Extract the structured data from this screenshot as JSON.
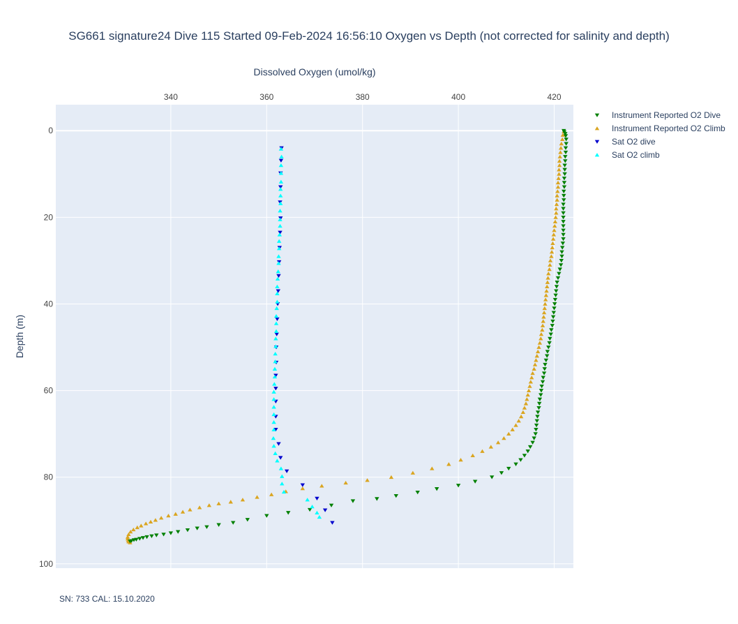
{
  "chart_data": {
    "type": "scatter",
    "title": "SG661 signature24 Dive 115 Started 09-Feb-2024 16:56:10  Oxygen vs Depth (not corrected for salinity and depth)",
    "xlabel": "Dissolved Oxygen (umol/kg)",
    "ylabel": "Depth (m)",
    "xlim": [
      316,
      424
    ],
    "ylim": [
      -6,
      101
    ],
    "y_reversed": true,
    "x_axis_position": "top",
    "x_ticks": [
      340,
      360,
      380,
      400,
      420
    ],
    "y_ticks": [
      0,
      20,
      40,
      60,
      80,
      100
    ],
    "grid": true,
    "legend_position": "top-right",
    "footnote": "SN: 733  CAL: 15.10.2020",
    "series": [
      {
        "name": "Instrument Reported O2 Dive",
        "color": "#008000",
        "marker": "triangle-down",
        "points": [
          [
            422.0,
            0.0
          ],
          [
            422.1,
            0.3
          ],
          [
            422.3,
            0.7
          ],
          [
            422.4,
            1.2
          ],
          [
            422.5,
            2.0
          ],
          [
            422.5,
            3.0
          ],
          [
            422.4,
            4.0
          ],
          [
            422.4,
            5.0
          ],
          [
            422.3,
            6.0
          ],
          [
            422.3,
            7.0
          ],
          [
            422.2,
            8.0
          ],
          [
            422.2,
            9.0
          ],
          [
            422.2,
            10.0
          ],
          [
            422.1,
            11.0
          ],
          [
            422.1,
            12.0
          ],
          [
            422.1,
            13.0
          ],
          [
            422.0,
            14.0
          ],
          [
            422.0,
            15.0
          ],
          [
            422.0,
            16.0
          ],
          [
            421.9,
            17.0
          ],
          [
            421.9,
            18.0
          ],
          [
            421.9,
            19.0
          ],
          [
            421.9,
            20.0
          ],
          [
            421.9,
            21.0
          ],
          [
            421.9,
            22.0
          ],
          [
            421.9,
            23.0
          ],
          [
            421.9,
            24.0
          ],
          [
            421.9,
            25.0
          ],
          [
            421.8,
            26.0
          ],
          [
            421.7,
            27.0
          ],
          [
            421.6,
            28.0
          ],
          [
            421.6,
            29.0
          ],
          [
            421.5,
            30.0
          ],
          [
            421.4,
            31.0
          ],
          [
            421.2,
            32.0
          ],
          [
            421.0,
            33.0
          ],
          [
            420.8,
            34.0
          ],
          [
            420.6,
            35.0
          ],
          [
            420.5,
            36.0
          ],
          [
            420.4,
            37.0
          ],
          [
            420.3,
            38.0
          ],
          [
            420.2,
            39.0
          ],
          [
            420.1,
            40.0
          ],
          [
            420.0,
            41.0
          ],
          [
            419.9,
            42.0
          ],
          [
            419.8,
            43.0
          ],
          [
            419.7,
            44.0
          ],
          [
            419.6,
            45.0
          ],
          [
            419.4,
            46.0
          ],
          [
            419.3,
            47.0
          ],
          [
            419.1,
            48.0
          ],
          [
            419.0,
            49.0
          ],
          [
            418.8,
            50.0
          ],
          [
            418.6,
            51.0
          ],
          [
            418.5,
            52.0
          ],
          [
            418.3,
            53.0
          ],
          [
            418.1,
            54.0
          ],
          [
            418.0,
            55.0
          ],
          [
            417.9,
            56.0
          ],
          [
            417.7,
            57.0
          ],
          [
            417.6,
            58.0
          ],
          [
            417.4,
            59.0
          ],
          [
            417.3,
            60.0
          ],
          [
            417.2,
            61.0
          ],
          [
            417.0,
            62.0
          ],
          [
            416.9,
            63.0
          ],
          [
            416.8,
            64.0
          ],
          [
            416.6,
            65.0
          ],
          [
            416.5,
            66.0
          ],
          [
            416.4,
            67.0
          ],
          [
            416.3,
            68.0
          ],
          [
            416.2,
            69.0
          ],
          [
            416.1,
            70.0
          ],
          [
            415.8,
            71.0
          ],
          [
            415.5,
            72.0
          ],
          [
            415.0,
            73.0
          ],
          [
            414.5,
            74.0
          ],
          [
            413.8,
            75.0
          ],
          [
            413.0,
            76.0
          ],
          [
            412.0,
            77.0
          ],
          [
            410.5,
            78.0
          ],
          [
            409.0,
            79.0
          ],
          [
            407.0,
            80.0
          ],
          [
            403.5,
            81.0
          ],
          [
            400.0,
            81.9
          ],
          [
            395.5,
            82.7
          ],
          [
            391.5,
            83.5
          ],
          [
            387.0,
            84.3
          ],
          [
            383.0,
            85.0
          ],
          [
            378.0,
            85.5
          ],
          [
            373.5,
            86.5
          ],
          [
            369.0,
            87.5
          ],
          [
            364.5,
            88.2
          ],
          [
            360.0,
            88.9
          ],
          [
            356.0,
            89.8
          ],
          [
            353.0,
            90.5
          ],
          [
            350.0,
            91.0
          ],
          [
            347.5,
            91.5
          ],
          [
            345.5,
            91.8
          ],
          [
            343.5,
            92.2
          ],
          [
            341.5,
            92.6
          ],
          [
            340.0,
            92.9
          ],
          [
            338.5,
            93.2
          ],
          [
            337.0,
            93.4
          ],
          [
            336.0,
            93.6
          ],
          [
            335.0,
            93.8
          ],
          [
            334.2,
            94.0
          ],
          [
            333.5,
            94.2
          ],
          [
            332.8,
            94.4
          ],
          [
            332.3,
            94.5
          ],
          [
            331.8,
            94.7
          ],
          [
            331.5,
            94.8
          ]
        ]
      },
      {
        "name": "Instrument Reported O2 Climb",
        "color": "#DAA520",
        "marker": "triangle-up",
        "points": [
          [
            422.0,
            0.2
          ],
          [
            421.8,
            1.0
          ],
          [
            421.7,
            2.0
          ],
          [
            421.5,
            3.0
          ],
          [
            421.4,
            4.0
          ],
          [
            421.3,
            5.0
          ],
          [
            421.2,
            6.0
          ],
          [
            421.1,
            7.0
          ],
          [
            421.1,
            8.0
          ],
          [
            421.0,
            9.0
          ],
          [
            421.0,
            10.0
          ],
          [
            420.9,
            11.0
          ],
          [
            420.8,
            12.0
          ],
          [
            420.8,
            13.0
          ],
          [
            420.7,
            14.0
          ],
          [
            420.6,
            15.0
          ],
          [
            420.6,
            16.0
          ],
          [
            420.5,
            17.0
          ],
          [
            420.4,
            18.0
          ],
          [
            420.4,
            19.0
          ],
          [
            420.3,
            20.0
          ],
          [
            420.2,
            21.0
          ],
          [
            420.1,
            22.0
          ],
          [
            420.0,
            23.0
          ],
          [
            419.9,
            24.0
          ],
          [
            419.8,
            25.0
          ],
          [
            419.7,
            26.0
          ],
          [
            419.6,
            27.0
          ],
          [
            419.5,
            28.0
          ],
          [
            419.4,
            29.0
          ],
          [
            419.2,
            30.0
          ],
          [
            419.1,
            31.0
          ],
          [
            419.0,
            32.0
          ],
          [
            418.8,
            33.0
          ],
          [
            418.7,
            34.0
          ],
          [
            418.6,
            35.0
          ],
          [
            418.5,
            36.0
          ],
          [
            418.4,
            37.0
          ],
          [
            418.3,
            38.0
          ],
          [
            418.2,
            39.0
          ],
          [
            418.1,
            40.0
          ],
          [
            418.0,
            41.0
          ],
          [
            417.9,
            42.0
          ],
          [
            417.8,
            43.0
          ],
          [
            417.7,
            44.0
          ],
          [
            417.6,
            45.0
          ],
          [
            417.5,
            46.0
          ],
          [
            417.3,
            47.0
          ],
          [
            417.2,
            48.0
          ],
          [
            417.0,
            49.0
          ],
          [
            416.8,
            50.0
          ],
          [
            416.6,
            51.0
          ],
          [
            416.4,
            52.0
          ],
          [
            416.2,
            53.0
          ],
          [
            416.0,
            54.0
          ],
          [
            415.8,
            55.0
          ],
          [
            415.5,
            56.0
          ],
          [
            415.3,
            57.0
          ],
          [
            415.1,
            58.0
          ],
          [
            414.9,
            59.0
          ],
          [
            414.7,
            60.0
          ],
          [
            414.5,
            61.0
          ],
          [
            414.3,
            62.0
          ],
          [
            414.1,
            63.0
          ],
          [
            413.8,
            64.0
          ],
          [
            413.5,
            65.0
          ],
          [
            413.1,
            66.0
          ],
          [
            412.6,
            67.0
          ],
          [
            412.0,
            68.0
          ],
          [
            411.3,
            69.0
          ],
          [
            410.5,
            70.0
          ],
          [
            409.5,
            71.0
          ],
          [
            408.3,
            72.0
          ],
          [
            406.8,
            73.0
          ],
          [
            405.0,
            74.0
          ],
          [
            403.0,
            75.0
          ],
          [
            400.5,
            76.0
          ],
          [
            398.0,
            77.0
          ],
          [
            394.5,
            78.0
          ],
          [
            390.5,
            79.0
          ],
          [
            386.0,
            80.0
          ],
          [
            381.0,
            80.7
          ],
          [
            376.5,
            81.3
          ],
          [
            371.5,
            82.0
          ],
          [
            367.5,
            82.6
          ],
          [
            364.0,
            83.3
          ],
          [
            361.0,
            84.0
          ],
          [
            358.0,
            84.6
          ],
          [
            355.0,
            85.2
          ],
          [
            352.5,
            85.7
          ],
          [
            350.0,
            86.1
          ],
          [
            348.0,
            86.5
          ],
          [
            346.0,
            87.0
          ],
          [
            344.0,
            87.5
          ],
          [
            342.5,
            88.0
          ],
          [
            341.0,
            88.5
          ],
          [
            339.5,
            88.9
          ],
          [
            338.0,
            89.4
          ],
          [
            336.8,
            89.9
          ],
          [
            335.8,
            90.3
          ],
          [
            334.8,
            90.7
          ],
          [
            333.8,
            91.2
          ],
          [
            333.0,
            91.6
          ],
          [
            332.2,
            92.1
          ],
          [
            331.6,
            92.6
          ],
          [
            331.2,
            93.2
          ],
          [
            331.0,
            93.8
          ],
          [
            331.0,
            94.2
          ],
          [
            331.1,
            94.6
          ],
          [
            331.2,
            94.9
          ],
          [
            331.5,
            95.1
          ]
        ]
      },
      {
        "name": "Sat O2 dive",
        "color": "#0000CD",
        "marker": "triangle-down",
        "points": [
          [
            363.1,
            4.0
          ],
          [
            363.0,
            6.9
          ],
          [
            362.9,
            9.8
          ],
          [
            362.9,
            13.0
          ],
          [
            362.8,
            16.5
          ],
          [
            362.9,
            20.2
          ],
          [
            362.8,
            23.5
          ],
          [
            362.7,
            27.0
          ],
          [
            362.6,
            30.3
          ],
          [
            362.5,
            33.5
          ],
          [
            362.4,
            37.0
          ],
          [
            362.3,
            40.0
          ],
          [
            362.2,
            43.5
          ],
          [
            362.1,
            47.0
          ],
          [
            362.0,
            50.0
          ],
          [
            362.0,
            53.5
          ],
          [
            361.9,
            56.5
          ],
          [
            361.9,
            59.5
          ],
          [
            361.9,
            62.5
          ],
          [
            361.9,
            66.0
          ],
          [
            361.9,
            69.0
          ],
          [
            362.5,
            72.3
          ],
          [
            362.9,
            75.5
          ],
          [
            364.2,
            78.6
          ],
          [
            367.5,
            81.8
          ],
          [
            370.5,
            84.9
          ],
          [
            372.2,
            87.6
          ],
          [
            373.7,
            90.5
          ]
        ]
      },
      {
        "name": "Sat O2 climb",
        "color": "#00FFFF",
        "marker": "triangle-up",
        "points": [
          [
            363.0,
            4.2
          ],
          [
            363.1,
            6.0
          ],
          [
            363.0,
            8.0
          ],
          [
            363.0,
            9.8
          ],
          [
            363.0,
            11.8
          ],
          [
            362.9,
            13.5
          ],
          [
            362.9,
            15.0
          ],
          [
            362.9,
            16.8
          ],
          [
            362.8,
            18.5
          ],
          [
            362.8,
            20.5
          ],
          [
            362.8,
            22.0
          ],
          [
            362.7,
            24.0
          ],
          [
            362.6,
            25.5
          ],
          [
            362.6,
            27.2
          ],
          [
            362.5,
            29.0
          ],
          [
            362.5,
            30.6
          ],
          [
            362.4,
            32.5
          ],
          [
            362.3,
            34.2
          ],
          [
            362.2,
            36.0
          ],
          [
            362.2,
            37.6
          ],
          [
            362.2,
            39.5
          ],
          [
            362.1,
            41.0
          ],
          [
            362.0,
            42.8
          ],
          [
            362.0,
            44.5
          ],
          [
            362.0,
            46.3
          ],
          [
            361.9,
            48.0
          ],
          [
            361.9,
            49.8
          ],
          [
            361.8,
            51.5
          ],
          [
            361.8,
            53.3
          ],
          [
            361.7,
            55.0
          ],
          [
            361.7,
            56.8
          ],
          [
            361.6,
            58.5
          ],
          [
            361.5,
            60.3
          ],
          [
            361.5,
            62.0
          ],
          [
            361.5,
            63.8
          ],
          [
            361.5,
            65.5
          ],
          [
            361.5,
            67.3
          ],
          [
            361.5,
            69.0
          ],
          [
            361.4,
            71.0
          ],
          [
            361.5,
            72.8
          ],
          [
            361.8,
            74.5
          ],
          [
            362.2,
            76.2
          ],
          [
            363.0,
            78.0
          ],
          [
            363.2,
            79.8
          ],
          [
            363.2,
            81.5
          ],
          [
            363.6,
            83.4
          ],
          [
            368.5,
            85.2
          ],
          [
            369.5,
            86.8
          ],
          [
            370.5,
            88.2
          ],
          [
            371.0,
            89.2
          ]
        ]
      }
    ]
  }
}
